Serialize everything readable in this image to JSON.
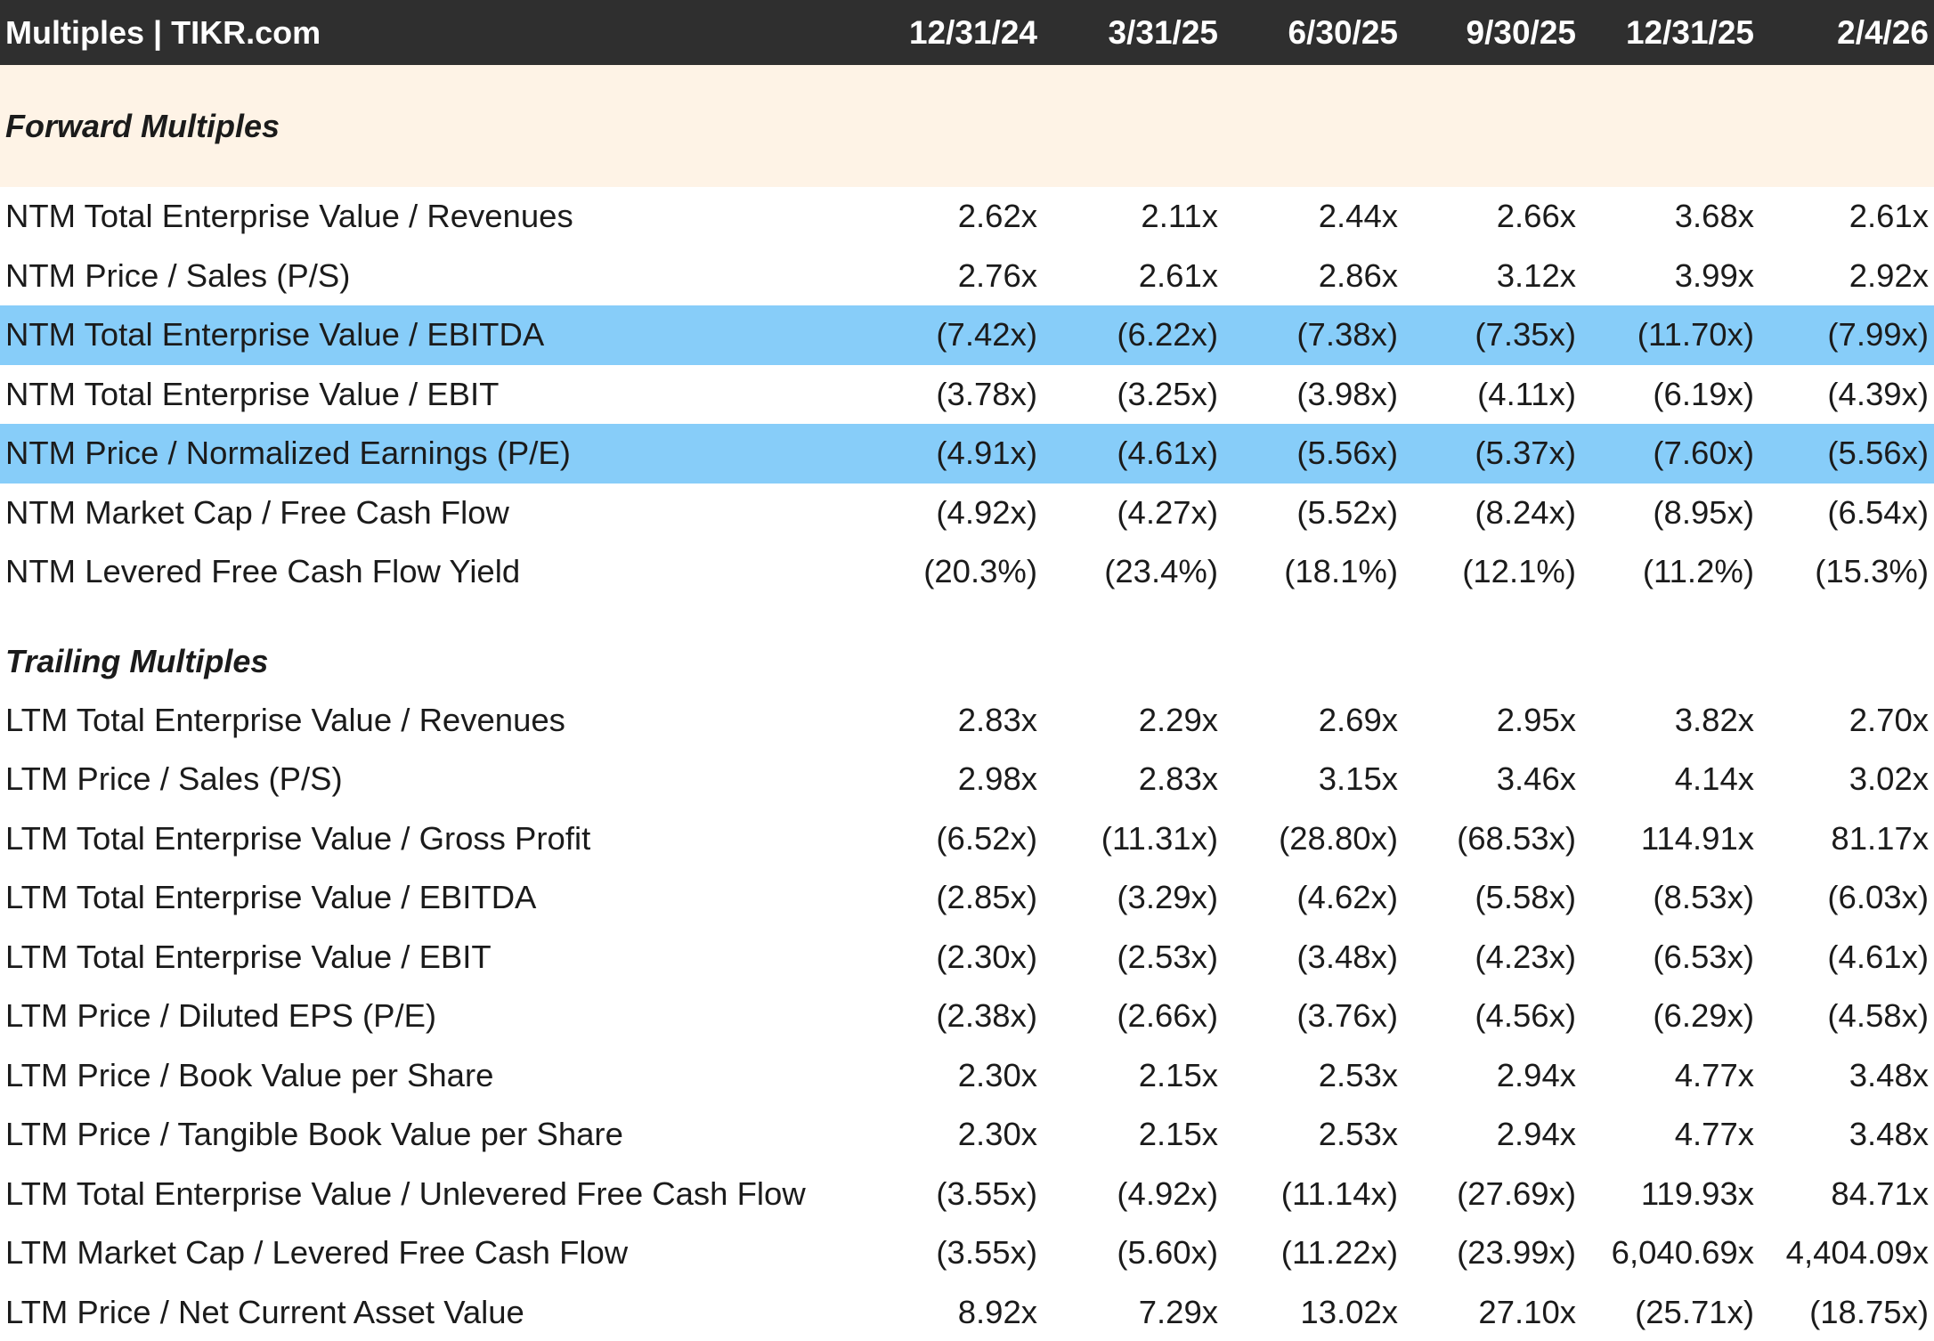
{
  "header": {
    "title": "Multiples | TIKR.com",
    "dates": [
      "12/31/24",
      "3/31/25",
      "6/30/25",
      "9/30/25",
      "12/31/25",
      "2/4/26"
    ]
  },
  "colors": {
    "header_bg": "#2f2f2f",
    "section_bg": "#fef3e6",
    "highlight_bg": "#87cdf9"
  },
  "forward": {
    "title": "Forward Multiples",
    "rows": [
      {
        "label": "NTM Total Enterprise Value / Revenues",
        "highlight": false,
        "values": [
          "2.62x",
          "2.11x",
          "2.44x",
          "2.66x",
          "3.68x",
          "2.61x"
        ]
      },
      {
        "label": "NTM Price / Sales (P/S)",
        "highlight": false,
        "values": [
          "2.76x",
          "2.61x",
          "2.86x",
          "3.12x",
          "3.99x",
          "2.92x"
        ]
      },
      {
        "label": "NTM Total Enterprise Value / EBITDA",
        "highlight": true,
        "values": [
          "(7.42x)",
          "(6.22x)",
          "(7.38x)",
          "(7.35x)",
          "(11.70x)",
          "(7.99x)"
        ]
      },
      {
        "label": "NTM Total Enterprise Value / EBIT",
        "highlight": false,
        "values": [
          "(3.78x)",
          "(3.25x)",
          "(3.98x)",
          "(4.11x)",
          "(6.19x)",
          "(4.39x)"
        ]
      },
      {
        "label": "NTM Price / Normalized Earnings (P/E)",
        "highlight": true,
        "values": [
          "(4.91x)",
          "(4.61x)",
          "(5.56x)",
          "(5.37x)",
          "(7.60x)",
          "(5.56x)"
        ]
      },
      {
        "label": "NTM Market Cap / Free Cash Flow",
        "highlight": false,
        "values": [
          "(4.92x)",
          "(4.27x)",
          "(5.52x)",
          "(8.24x)",
          "(8.95x)",
          "(6.54x)"
        ]
      },
      {
        "label": "NTM Levered Free Cash Flow Yield",
        "highlight": false,
        "values": [
          "(20.3%)",
          "(23.4%)",
          "(18.1%)",
          "(12.1%)",
          "(11.2%)",
          "(15.3%)"
        ]
      }
    ]
  },
  "trailing": {
    "title": "Trailing Multiples",
    "rows": [
      {
        "label": "LTM Total Enterprise Value / Revenues",
        "highlight": false,
        "values": [
          "2.83x",
          "2.29x",
          "2.69x",
          "2.95x",
          "3.82x",
          "2.70x"
        ]
      },
      {
        "label": "LTM Price / Sales (P/S)",
        "highlight": false,
        "values": [
          "2.98x",
          "2.83x",
          "3.15x",
          "3.46x",
          "4.14x",
          "3.02x"
        ]
      },
      {
        "label": "LTM Total Enterprise Value / Gross Profit",
        "highlight": false,
        "values": [
          "(6.52x)",
          "(11.31x)",
          "(28.80x)",
          "(68.53x)",
          "114.91x",
          "81.17x"
        ]
      },
      {
        "label": "LTM Total Enterprise Value / EBITDA",
        "highlight": false,
        "values": [
          "(2.85x)",
          "(3.29x)",
          "(4.62x)",
          "(5.58x)",
          "(8.53x)",
          "(6.03x)"
        ]
      },
      {
        "label": "LTM Total Enterprise Value / EBIT",
        "highlight": false,
        "values": [
          "(2.30x)",
          "(2.53x)",
          "(3.48x)",
          "(4.23x)",
          "(6.53x)",
          "(4.61x)"
        ]
      },
      {
        "label": "LTM Price / Diluted EPS (P/E)",
        "highlight": false,
        "values": [
          "(2.38x)",
          "(2.66x)",
          "(3.76x)",
          "(4.56x)",
          "(6.29x)",
          "(4.58x)"
        ]
      },
      {
        "label": "LTM Price / Book Value per Share",
        "highlight": false,
        "values": [
          "2.30x",
          "2.15x",
          "2.53x",
          "2.94x",
          "4.77x",
          "3.48x"
        ]
      },
      {
        "label": "LTM Price / Tangible Book Value per Share",
        "highlight": false,
        "values": [
          "2.30x",
          "2.15x",
          "2.53x",
          "2.94x",
          "4.77x",
          "3.48x"
        ]
      },
      {
        "label": "LTM Total Enterprise Value / Unlevered Free Cash Flow",
        "highlight": false,
        "values": [
          "(3.55x)",
          "(4.92x)",
          "(11.14x)",
          "(27.69x)",
          "119.93x",
          "84.71x"
        ]
      },
      {
        "label": "LTM Market Cap / Levered Free Cash Flow",
        "highlight": false,
        "values": [
          "(3.55x)",
          "(5.60x)",
          "(11.22x)",
          "(23.99x)",
          "6,040.69x",
          "4,404.09x"
        ]
      },
      {
        "label": "LTM Price / Net Current Asset Value",
        "highlight": false,
        "values": [
          "8.92x",
          "7.29x",
          "13.02x",
          "27.10x",
          "(25.71x)",
          "(18.75x)"
        ]
      }
    ]
  }
}
